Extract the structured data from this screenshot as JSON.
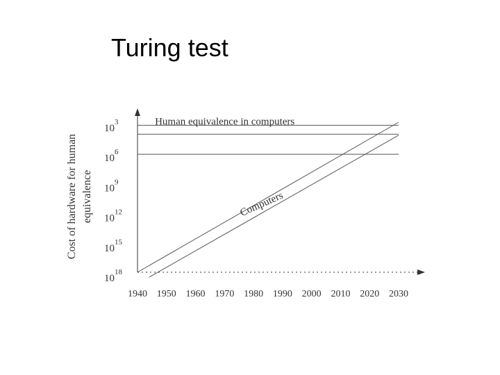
{
  "slide": {
    "title": "Turing test"
  },
  "chart_data": {
    "type": "line",
    "title": "",
    "ylabel_lines": [
      "Cost of hardware for human",
      "equivalence"
    ],
    "xlabel": "",
    "x_ticks": [
      "1940",
      "1950",
      "1960",
      "1970",
      "1980",
      "1990",
      "2000",
      "2010",
      "2020",
      "2030"
    ],
    "xlim": [
      1940,
      2030
    ],
    "y_ticks": [
      {
        "base": "10",
        "exp": "3"
      },
      {
        "base": "10",
        "exp": "6"
      },
      {
        "base": "10",
        "exp": "9"
      },
      {
        "base": "10",
        "exp": "12"
      },
      {
        "base": "10",
        "exp": "15"
      },
      {
        "base": "10",
        "exp": "18"
      }
    ],
    "y_exponents": [
      3,
      6,
      9,
      12,
      15,
      18
    ],
    "ylim_exponent": [
      18,
      3
    ],
    "series": [
      {
        "points": [
          [
            1940,
            18
          ],
          [
            2030,
            3
          ]
        ]
      },
      {
        "points": [
          [
            1944,
            18.5
          ],
          [
            2030,
            4.3
          ]
        ]
      }
    ],
    "reference_lines": [
      {
        "y_exponent": 3.3
      },
      {
        "y_exponent": 4.2,
        "label": "Human equivalence in computers",
        "label_x": 1946
      },
      {
        "y_exponent": 6.2
      }
    ],
    "annotations": [
      {
        "text": "Computers",
        "x": 1976,
        "y_exponent": 12.4,
        "angle": -24
      }
    ],
    "colors": {
      "axis": "#333333",
      "line": "#555555",
      "text": "#333333"
    }
  }
}
